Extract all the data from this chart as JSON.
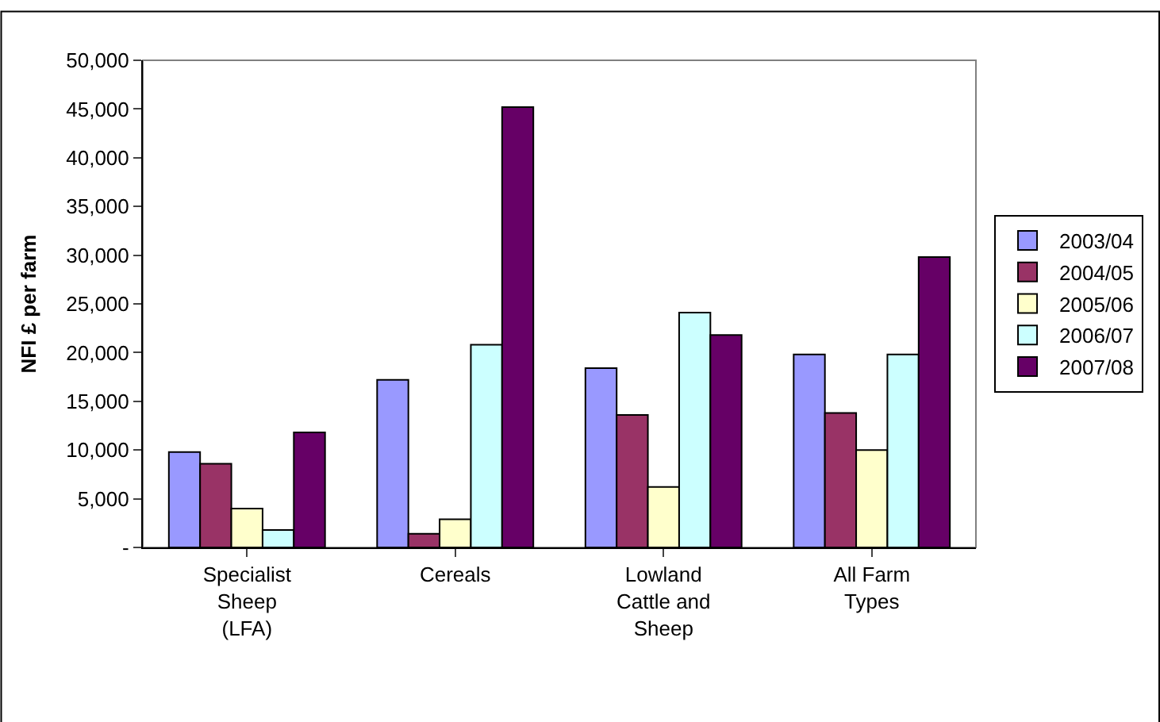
{
  "chart_data": {
    "type": "bar",
    "ylabel": "NFI £ per farm",
    "categories": [
      "Specialist Sheep (LFA)",
      "Cereals",
      "Lowland Cattle and Sheep",
      "All Farm Types"
    ],
    "series": [
      {
        "name": "2003/04",
        "color": "#9999ff",
        "values": [
          9800,
          17200,
          18400,
          19800
        ]
      },
      {
        "name": "2004/05",
        "color": "#993366",
        "values": [
          8600,
          1400,
          13600,
          13800
        ]
      },
      {
        "name": "2005/06",
        "color": "#ffffcc",
        "values": [
          4000,
          2900,
          6200,
          10000
        ]
      },
      {
        "name": "2006/07",
        "color": "#ccffff",
        "values": [
          1800,
          20800,
          24100,
          19800
        ]
      },
      {
        "name": "2007/08",
        "color": "#660066",
        "values": [
          11800,
          45200,
          21800,
          29800
        ]
      }
    ],
    "ylim": [
      0,
      50000
    ],
    "yticks": [
      {
        "value": 0,
        "label": "-"
      },
      {
        "value": 5000,
        "label": "5,000"
      },
      {
        "value": 10000,
        "label": "10,000"
      },
      {
        "value": 15000,
        "label": "15,000"
      },
      {
        "value": 20000,
        "label": "20,000"
      },
      {
        "value": 25000,
        "label": "25,000"
      },
      {
        "value": 30000,
        "label": "30,000"
      },
      {
        "value": 35000,
        "label": "35,000"
      },
      {
        "value": 40000,
        "label": "40,000"
      },
      {
        "value": 45000,
        "label": "45,000"
      },
      {
        "value": 50000,
        "label": "50,000"
      }
    ],
    "grid": false,
    "legend": "right"
  }
}
